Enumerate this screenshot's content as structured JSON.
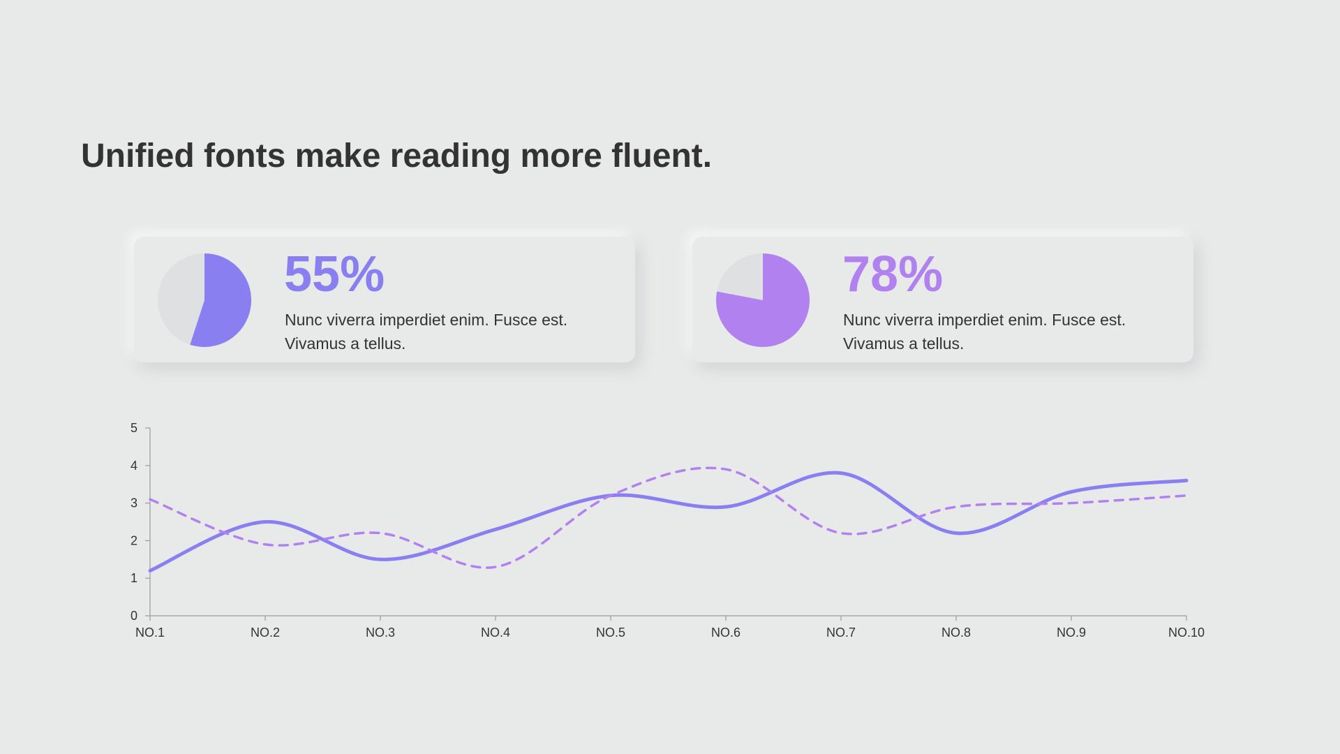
{
  "slide": {
    "title": "Unified fonts make reading more fluent."
  },
  "colors": {
    "accent_1": "#8a7ff0",
    "accent_2": "#b182ef",
    "pie_background": "#dfe0e2",
    "axis": "#9a9a9a",
    "text": "#333333"
  },
  "stats": [
    {
      "value": 55,
      "label": "55%",
      "line1": "Nunc viverra imperdiet enim. Fusce est.",
      "line2": "Vivamus a tellus."
    },
    {
      "value": 78,
      "label": "78%",
      "line1": "Nunc viverra imperdiet enim. Fusce est.",
      "line2": "Vivamus a tellus."
    }
  ],
  "chart_data": {
    "type": "line",
    "categories": [
      "NO.1",
      "NO.2",
      "NO.3",
      "NO.4",
      "NO.5",
      "NO.6",
      "NO.7",
      "NO.8",
      "NO.9",
      "NO.10"
    ],
    "ylim": [
      0,
      5
    ],
    "yticks": [
      0,
      1,
      2,
      3,
      4,
      5
    ],
    "series": [
      {
        "style": "solid",
        "color": "#8a7ff0",
        "values": [
          1.2,
          2.5,
          1.5,
          2.3,
          3.2,
          2.9,
          3.8,
          2.2,
          3.3,
          3.6
        ]
      },
      {
        "style": "dashed",
        "color": "#b182ef",
        "values": [
          3.1,
          1.9,
          2.2,
          1.3,
          3.2,
          3.9,
          2.2,
          2.9,
          3.0,
          3.2
        ]
      }
    ],
    "grid": false,
    "legend": "none"
  }
}
